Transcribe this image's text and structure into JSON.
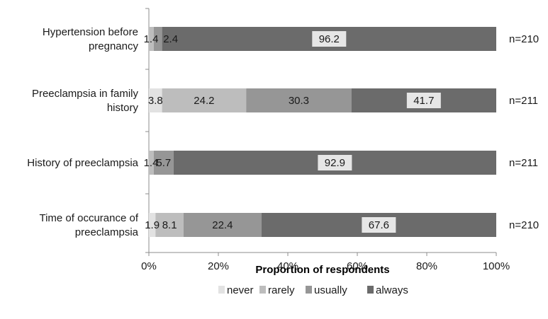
{
  "chart_data": {
    "type": "bar",
    "orientation": "horizontal",
    "stacked": true,
    "categories": [
      [
        "Hypertension before",
        "pregnancy"
      ],
      [
        "Preeclampsia in family",
        "history"
      ],
      [
        "History of preeclampsia"
      ],
      [
        "Time of occurance of",
        "preeclampsia"
      ]
    ],
    "series": [
      {
        "name": "never",
        "color": "#e2e2e2",
        "values": [
          0,
          3.8,
          0,
          1.9
        ],
        "labels": [
          "",
          "3.8",
          "",
          "1.9"
        ]
      },
      {
        "name": "rarely",
        "color": "#bdbdbd",
        "values": [
          1.4,
          24.2,
          1.4,
          8.1
        ],
        "labels": [
          "1.4",
          "24.2",
          "1.4",
          "8.1"
        ]
      },
      {
        "name": "usually",
        "color": "#969696",
        "values": [
          2.4,
          30.3,
          5.7,
          22.4
        ],
        "labels": [
          "2.4",
          "30.3",
          "5.7",
          "22.4"
        ]
      },
      {
        "name": "always",
        "color": "#6b6b6b",
        "values": [
          96.2,
          41.7,
          92.9,
          67.6
        ],
        "labels": [
          "96.2",
          "41.7",
          "92.9",
          "67.6"
        ]
      }
    ],
    "n_labels": [
      "n=210",
      "n=211",
      "n=211",
      "n=210"
    ],
    "xlabel": "Proportion of respondents",
    "xticks": [
      "0%",
      "20%",
      "40%",
      "60%",
      "80%",
      "100%"
    ],
    "xlim": [
      0,
      100
    ],
    "grid": false,
    "legend_position": "bottom"
  }
}
